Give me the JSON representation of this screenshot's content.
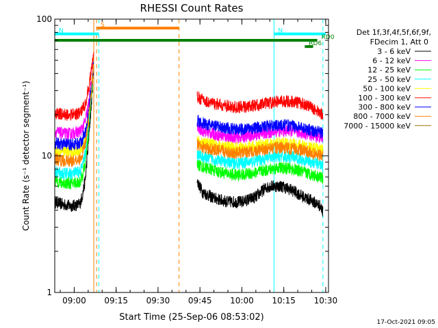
{
  "chart_data": {
    "type": "line",
    "title": "RHESSI Count Rates",
    "xlabel": "Start Time (25-Sep-06 08:53:02)",
    "ylabel": "Count Rate (s⁻¹ detector segment⁻¹)",
    "y_scale": "log",
    "ylim": [
      1,
      100
    ],
    "xlim": [
      "08:53:02",
      "10:31:00"
    ],
    "x_ticks": [
      "09:00",
      "09:15",
      "09:30",
      "09:45",
      "10:00",
      "10:15",
      "10:30"
    ],
    "y_ticks": [
      "1",
      "10",
      "100"
    ],
    "legend_header": [
      "Det 1f,3f,4f,5f,6f,9f,",
      "FDecim 1, Att 0"
    ],
    "legend_position": "right",
    "footer_date": "17-Oct-2021 09:05",
    "series": [
      {
        "name": "3 - 6 keV",
        "color": "#000000",
        "segments": [
          {
            "x": [
              "08:53:02",
              "08:56",
              "08:59",
              "09:02",
              "09:03",
              "09:04",
              "09:05",
              "09:06",
              "09:07"
            ],
            "y": [
              4.6,
              4.4,
              4.3,
              4.4,
              5.2,
              6.8,
              12,
              22,
              45
            ]
          },
          {
            "x": [
              "09:44",
              "09:46",
              "09:50",
              "09:55",
              "10:00",
              "10:05",
              "10:08",
              "10:10",
              "10:14",
              "10:18",
              "10:22",
              "10:25",
              "10:28",
              "10:29"
            ],
            "y": [
              6.5,
              5.4,
              4.9,
              4.6,
              4.6,
              5.0,
              5.7,
              6.0,
              6.0,
              5.6,
              5.0,
              4.7,
              4.3,
              3.9
            ]
          }
        ]
      },
      {
        "name": "6 - 12 keV",
        "color": "#ff00ff",
        "segments": [
          {
            "x": [
              "08:53:02",
              "08:56",
              "08:59",
              "09:02",
              "09:03",
              "09:04",
              "09:05",
              "09:06",
              "09:07"
            ],
            "y": [
              15,
              14.5,
              14.5,
              15,
              16,
              18,
              23,
              32,
              50
            ]
          },
          {
            "x": [
              "09:44",
              "09:47",
              "09:52",
              "09:58",
              "10:03",
              "10:08",
              "10:13",
              "10:18",
              "10:22",
              "10:26",
              "10:29"
            ],
            "y": [
              16,
              15,
              14,
              13.6,
              14,
              14.6,
              15.2,
              15.2,
              14.6,
              14,
              13.5
            ]
          }
        ]
      },
      {
        "name": "12 - 25 keV",
        "color": "#00ff00",
        "segments": [
          {
            "x": [
              "08:53:02",
              "08:56",
              "08:59",
              "09:02",
              "09:03",
              "09:04",
              "09:05",
              "09:06",
              "09:07"
            ],
            "y": [
              6.6,
              6.3,
              6.3,
              6.4,
              7.2,
              9.0,
              14,
              25,
              46
            ]
          },
          {
            "x": [
              "09:44",
              "09:47",
              "09:52",
              "09:58",
              "10:03",
              "10:08",
              "10:13",
              "10:18",
              "10:22",
              "10:26",
              "10:29"
            ],
            "y": [
              8.6,
              8.2,
              7.6,
              7.2,
              7.4,
              7.8,
              8.2,
              8.0,
              7.6,
              7.2,
              6.9
            ]
          }
        ]
      },
      {
        "name": "25 - 50 keV",
        "color": "#00ffff",
        "segments": [
          {
            "x": [
              "08:53:02",
              "08:56",
              "08:59",
              "09:02",
              "09:03",
              "09:04",
              "09:05",
              "09:06",
              "09:07"
            ],
            "y": [
              7.6,
              7.4,
              7.4,
              7.6,
              8.5,
              10.5,
              16,
              28,
              48
            ]
          },
          {
            "x": [
              "09:44",
              "09:47",
              "09:52",
              "09:58",
              "10:03",
              "10:08",
              "10:13",
              "10:18",
              "10:22",
              "10:26",
              "10:29"
            ],
            "y": [
              10.2,
              9.7,
              9.2,
              8.8,
              9.0,
              9.5,
              9.9,
              9.8,
              9.4,
              8.9,
              8.6
            ]
          }
        ]
      },
      {
        "name": "50 - 100 keV",
        "color": "#ffff00",
        "segments": [
          {
            "x": [
              "08:53:02",
              "08:56",
              "08:59",
              "09:02",
              "09:03",
              "09:04",
              "09:05",
              "09:06",
              "09:07"
            ],
            "y": [
              11,
              10.7,
              10.7,
              11,
              12,
              14,
              19,
              30,
              48
            ]
          },
          {
            "x": [
              "09:44",
              "09:47",
              "09:52",
              "09:58",
              "10:03",
              "10:08",
              "10:13",
              "10:18",
              "10:22",
              "10:26",
              "10:29"
            ],
            "y": [
              12.8,
              12.3,
              11.8,
              11.4,
              11.6,
              12.0,
              12.4,
              12.2,
              11.8,
              11.3,
              11.0
            ]
          }
        ]
      },
      {
        "name": "100 - 300 keV",
        "color": "#ff0000",
        "segments": [
          {
            "x": [
              "08:53:02",
              "08:56",
              "08:59",
              "09:02",
              "09:03",
              "09:04",
              "09:05",
              "09:06",
              "09:07"
            ],
            "y": [
              20.5,
              20,
              20,
              20.5,
              22,
              24,
              30,
              40,
              57
            ]
          },
          {
            "x": [
              "09:44",
              "09:47",
              "09:52",
              "09:58",
              "10:03",
              "10:08",
              "10:13",
              "10:18",
              "10:22",
              "10:26",
              "10:29"
            ],
            "y": [
              27,
              25,
              23.5,
              22.5,
              23,
              24,
              25,
              25,
              24,
              22,
              20
            ]
          }
        ]
      },
      {
        "name": "300 - 800 keV",
        "color": "#0000ff",
        "segments": [
          {
            "x": [
              "08:53:02",
              "08:56",
              "08:59",
              "09:02",
              "09:03",
              "09:04",
              "09:05",
              "09:06",
              "09:07"
            ],
            "y": [
              12.4,
              12.1,
              12.1,
              12.4,
              13.3,
              15,
              20,
              30,
              48
            ]
          },
          {
            "x": [
              "09:44",
              "09:47",
              "09:52",
              "09:58",
              "10:03",
              "10:08",
              "10:13",
              "10:18",
              "10:22",
              "10:26",
              "10:29"
            ],
            "y": [
              18,
              17,
              16.2,
              15.6,
              15.8,
              16.4,
              16.8,
              16.6,
              16.0,
              15.2,
              14.6
            ]
          }
        ]
      },
      {
        "name": "800 - 7000 keV",
        "color": "#ff8000",
        "segments": [
          {
            "x": [
              "08:53:02",
              "08:56",
              "08:59",
              "09:02",
              "09:03",
              "09:04",
              "09:05",
              "09:06",
              "09:07"
            ],
            "y": [
              9.5,
              9.2,
              9.2,
              9.5,
              10.4,
              12.5,
              17,
              28,
              46
            ]
          },
          {
            "x": [
              "09:44",
              "09:47",
              "09:52",
              "09:58",
              "10:03",
              "10:08",
              "10:13",
              "10:18",
              "10:22",
              "10:26",
              "10:29"
            ],
            "y": [
              12,
              11.4,
              10.9,
              10.5,
              10.7,
              11.1,
              11.5,
              11.3,
              10.9,
              10.3,
              9.9
            ]
          }
        ]
      },
      {
        "name": "7000 - 15000 keV",
        "color": "#a07000",
        "segments": []
      }
    ],
    "vlines": [
      {
        "x": "08:53:02",
        "color": "#00ffff",
        "style": "solid"
      },
      {
        "x": "09:08:50",
        "color": "#00ffff",
        "style": "dashed"
      },
      {
        "x": "09:07:00",
        "color": "#ff8000",
        "style": "solid"
      },
      {
        "x": "09:08:00",
        "color": "#ff8000",
        "style": "dashed"
      },
      {
        "x": "09:37:30",
        "color": "#ff8000",
        "style": "dashed"
      },
      {
        "x": "10:11:30",
        "color": "#00ffff",
        "style": "solid"
      },
      {
        "x": "10:29:00",
        "color": "#00ffff",
        "style": "dashed"
      }
    ],
    "hbars": [
      {
        "label": "N",
        "color": "#00ffff",
        "from": "08:53:02",
        "to": "09:08:50",
        "level": 78
      },
      {
        "label": "N",
        "color": "#00ffff",
        "from": "10:11:30",
        "to": "10:30:00",
        "level": 78
      },
      {
        "label": "S",
        "color": "#ff8000",
        "from": "09:08:00",
        "to": "09:37:30",
        "level": 86
      },
      {
        "label": "",
        "color": "#008000",
        "from": "08:53:02",
        "to": "10:27:00",
        "level": 70
      },
      {
        "label": "RD6",
        "color": "#008000",
        "from": "10:22:30",
        "to": "10:25:30",
        "level": 63
      },
      {
        "label": "RD0",
        "color": "#008000",
        "from": "10:27:00",
        "to": "10:27:00",
        "level": 70
      }
    ]
  }
}
